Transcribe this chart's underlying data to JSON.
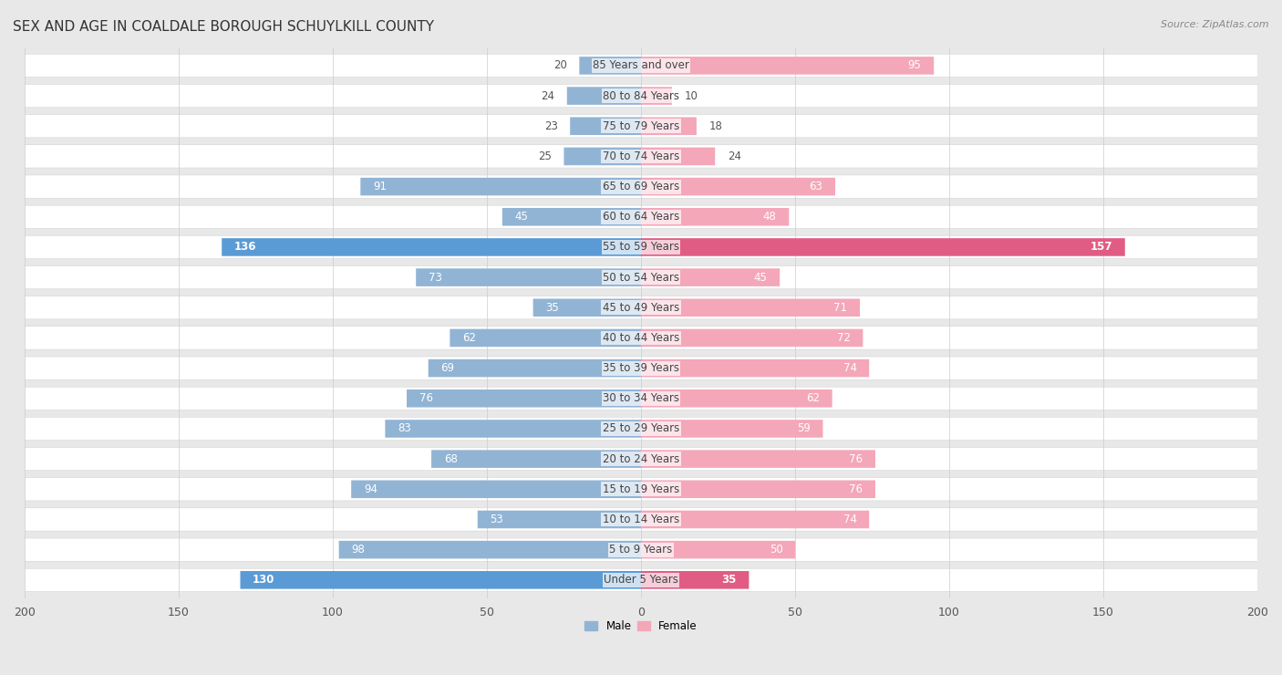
{
  "title": "SEX AND AGE IN COALDALE BOROUGH SCHUYLKILL COUNTY",
  "source": "Source: ZipAtlas.com",
  "categories": [
    "85 Years and over",
    "80 to 84 Years",
    "75 to 79 Years",
    "70 to 74 Years",
    "65 to 69 Years",
    "60 to 64 Years",
    "55 to 59 Years",
    "50 to 54 Years",
    "45 to 49 Years",
    "40 to 44 Years",
    "35 to 39 Years",
    "30 to 34 Years",
    "25 to 29 Years",
    "20 to 24 Years",
    "15 to 19 Years",
    "10 to 14 Years",
    "5 to 9 Years",
    "Under 5 Years"
  ],
  "male": [
    20,
    24,
    23,
    25,
    91,
    45,
    136,
    73,
    35,
    62,
    69,
    76,
    83,
    68,
    94,
    53,
    98,
    130
  ],
  "female": [
    95,
    10,
    18,
    24,
    63,
    48,
    157,
    45,
    71,
    72,
    74,
    62,
    59,
    76,
    76,
    74,
    50,
    35
  ],
  "male_color_normal": "#92b4d4",
  "male_color_highlight": "#5b9bd5",
  "female_color_normal": "#f4a7b9",
  "female_color_highlight": "#e05c85",
  "highlight_indices": [
    6,
    17
  ],
  "inside_threshold_male": 30,
  "inside_threshold_female": 30,
  "xlim": 200,
  "bg_color": "#e8e8e8",
  "row_white_color": "#ffffff",
  "row_gray_color": "#e8e8e8",
  "title_fontsize": 11,
  "label_fontsize": 8.5,
  "tick_fontsize": 9,
  "source_fontsize": 8,
  "cat_fontsize": 8.5
}
